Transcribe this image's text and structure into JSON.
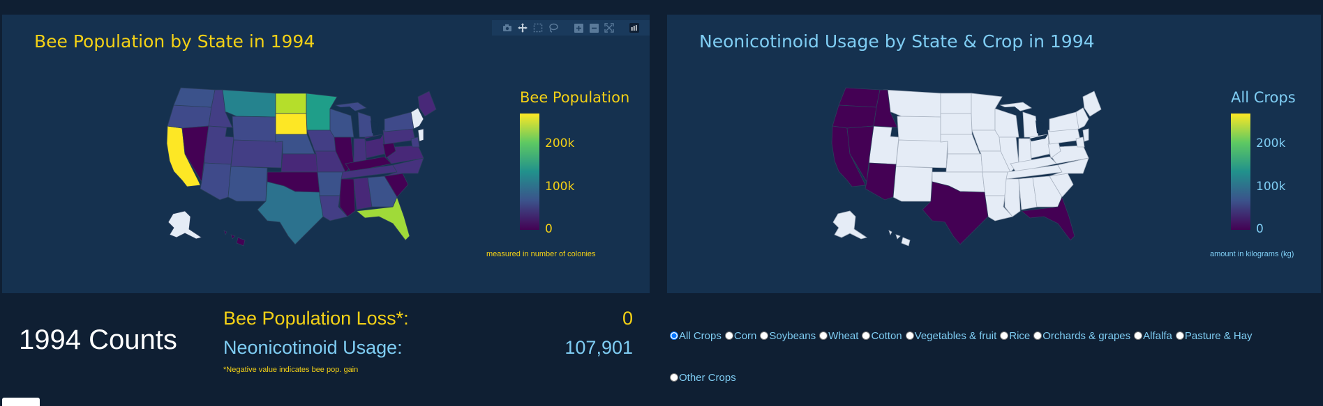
{
  "year": "1994",
  "bee_chart": {
    "title": "Bee Population by State in 1994",
    "colorbar_title": "Bee Population",
    "ticks": [
      "200k",
      "100k",
      "0"
    ],
    "caption": "measured in number of colonies",
    "accent": "#f4d116"
  },
  "neo_chart": {
    "title": "Neonicotinoid Usage by State & Crop in 1994",
    "colorbar_title": "All Crops",
    "ticks": [
      "200k",
      "100k",
      "0"
    ],
    "caption": "amount in kilograms (kg)",
    "accent": "#7fcdf3"
  },
  "modebar": [
    "camera-icon",
    "pan-icon",
    "box-select-icon",
    "lasso-icon",
    "zoom-in-icon",
    "zoom-out-icon",
    "autoscale-icon",
    "plotly-logo-icon"
  ],
  "counts": {
    "title": "1994 Counts",
    "loss_label": "Bee Population Loss*:",
    "loss_value": "0",
    "neo_label": "Neonicotinoid Usage:",
    "neo_value": "107,901",
    "footnote": "*Negative value indicates bee pop. gain"
  },
  "crops": {
    "selected": "All Crops",
    "options": [
      "All Crops",
      "Corn",
      "Soybeans",
      "Wheat",
      "Cotton",
      "Vegetables & fruit",
      "Rice",
      "Orchards & grapes",
      "Alfalfa",
      "Pasture & Hay",
      "Other Crops"
    ]
  },
  "colors": {
    "background": "#0f1f33",
    "panel": "#15314f",
    "viridis_low": "#440154",
    "viridis_mid": "#21918c",
    "viridis_high": "#fde725",
    "no_data": "#e5ecf6"
  }
}
